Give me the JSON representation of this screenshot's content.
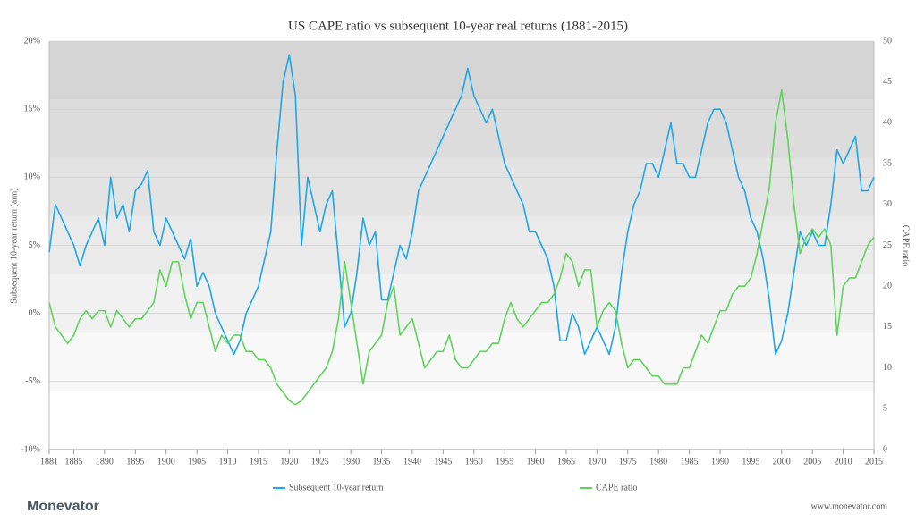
{
  "chart_data": {
    "type": "line",
    "title": "US CAPE ratio vs subsequent 10-year real returns (1881-2015)",
    "y_label": "Subsequent 10-year return (ann)",
    "y2_label": "CAPE ratio",
    "brand": "Monevator",
    "source": "www.monevator.com",
    "x": [
      1881,
      1882,
      1883,
      1884,
      1885,
      1886,
      1887,
      1888,
      1889,
      1890,
      1891,
      1892,
      1893,
      1894,
      1895,
      1896,
      1897,
      1898,
      1899,
      1900,
      1901,
      1902,
      1903,
      1904,
      1905,
      1906,
      1907,
      1908,
      1909,
      1910,
      1911,
      1912,
      1913,
      1914,
      1915,
      1916,
      1917,
      1918,
      1919,
      1920,
      1921,
      1922,
      1923,
      1924,
      1925,
      1926,
      1927,
      1928,
      1929,
      1930,
      1931,
      1932,
      1933,
      1934,
      1935,
      1936,
      1937,
      1938,
      1939,
      1940,
      1941,
      1942,
      1943,
      1944,
      1945,
      1946,
      1947,
      1948,
      1949,
      1950,
      1951,
      1952,
      1953,
      1954,
      1955,
      1956,
      1957,
      1958,
      1959,
      1960,
      1961,
      1962,
      1963,
      1964,
      1965,
      1966,
      1967,
      1968,
      1969,
      1970,
      1971,
      1972,
      1973,
      1974,
      1975,
      1976,
      1977,
      1978,
      1979,
      1980,
      1981,
      1982,
      1983,
      1984,
      1985,
      1986,
      1987,
      1988,
      1989,
      1990,
      1991,
      1992,
      1993,
      1994,
      1995,
      1996,
      1997,
      1998,
      1999,
      2000,
      2001,
      2002,
      2003,
      2004,
      2005,
      2006,
      2007,
      2008,
      2009,
      2010,
      2011,
      2012,
      2013,
      2014,
      2015
    ],
    "series": [
      {
        "name": "Subsequent 10-year return",
        "color": "#1ea7e8",
        "axis": "y",
        "values": [
          4.5,
          8,
          7,
          6,
          5,
          3.5,
          5,
          6,
          7,
          5,
          10,
          7,
          8,
          6,
          9,
          9.5,
          10.5,
          6,
          5,
          7,
          6,
          5,
          4,
          5.5,
          2,
          3,
          2,
          0,
          -1,
          -2,
          -3,
          -2,
          0,
          1,
          2,
          4,
          6,
          12,
          17,
          19,
          16,
          5,
          10,
          8,
          6,
          8,
          9,
          4,
          -1,
          0,
          3,
          7,
          5,
          6,
          1,
          1,
          3,
          5,
          4,
          6,
          9,
          10,
          11,
          12,
          13,
          14,
          15,
          16,
          18,
          16,
          15,
          14,
          15,
          13,
          11,
          10,
          9,
          8,
          6,
          6,
          5,
          4,
          2,
          -2,
          -2,
          0,
          -1,
          -3,
          -2,
          -1,
          -2,
          -3,
          -1,
          3,
          6,
          8,
          9,
          11,
          11,
          10,
          12,
          14,
          11,
          11,
          10,
          10,
          12,
          14,
          15,
          15,
          14,
          12,
          10,
          9,
          7,
          6,
          4,
          1,
          -3,
          -2,
          0,
          3,
          6,
          5,
          6,
          5,
          5,
          8,
          12,
          11,
          12,
          13,
          9,
          9,
          10
        ]
      },
      {
        "name": "CAPE ratio",
        "color": "#5fd35b",
        "axis": "y2",
        "values": [
          18,
          15,
          14,
          13,
          14,
          16,
          17,
          16,
          17,
          17,
          15,
          17,
          16,
          15,
          16,
          16,
          17,
          18,
          22,
          20,
          23,
          23,
          19,
          16,
          18,
          18,
          15,
          12,
          14,
          13,
          14,
          14,
          12,
          12,
          11,
          11,
          10,
          8,
          7,
          6,
          5.5,
          6,
          7,
          8,
          9,
          10,
          12,
          16,
          23,
          18,
          13,
          8,
          12,
          13,
          14,
          18,
          20,
          14,
          15,
          16,
          13,
          10,
          11,
          12,
          12,
          14,
          11,
          10,
          10,
          11,
          12,
          12,
          13,
          13,
          16,
          18,
          16,
          15,
          16,
          17,
          18,
          18,
          19,
          21,
          24,
          23,
          20,
          22,
          22,
          15,
          17,
          18,
          17,
          13,
          10,
          11,
          11,
          10,
          9,
          9,
          8,
          8,
          8,
          10,
          10,
          12,
          14,
          13,
          15,
          17,
          17,
          19,
          20,
          20,
          21,
          24,
          28,
          32,
          40,
          44,
          38,
          30,
          24,
          26,
          27,
          26,
          27,
          25,
          14,
          20,
          21,
          21,
          23,
          25,
          26
        ]
      }
    ],
    "xlim": [
      1881,
      2015
    ],
    "xticks": [
      1881,
      1885,
      1890,
      1895,
      1900,
      1905,
      1910,
      1915,
      1920,
      1925,
      1930,
      1935,
      1940,
      1945,
      1950,
      1955,
      1960,
      1965,
      1970,
      1975,
      1980,
      1985,
      1990,
      1995,
      2000,
      2005,
      2010,
      2015
    ],
    "ylim": [
      -10,
      20
    ],
    "yticks": [
      {
        "value": -10,
        "label": "-10%"
      },
      {
        "value": -5,
        "label": "-5%"
      },
      {
        "value": 0,
        "label": "0%"
      },
      {
        "value": 5,
        "label": "5%"
      },
      {
        "value": 10,
        "label": "10%"
      },
      {
        "value": 15,
        "label": "15%"
      },
      {
        "value": 20,
        "label": "20%"
      }
    ],
    "y2lim": [
      0,
      50
    ],
    "y2ticks": [
      0,
      5,
      10,
      15,
      20,
      25,
      30,
      35,
      40,
      45,
      50
    ],
    "grid": true
  }
}
